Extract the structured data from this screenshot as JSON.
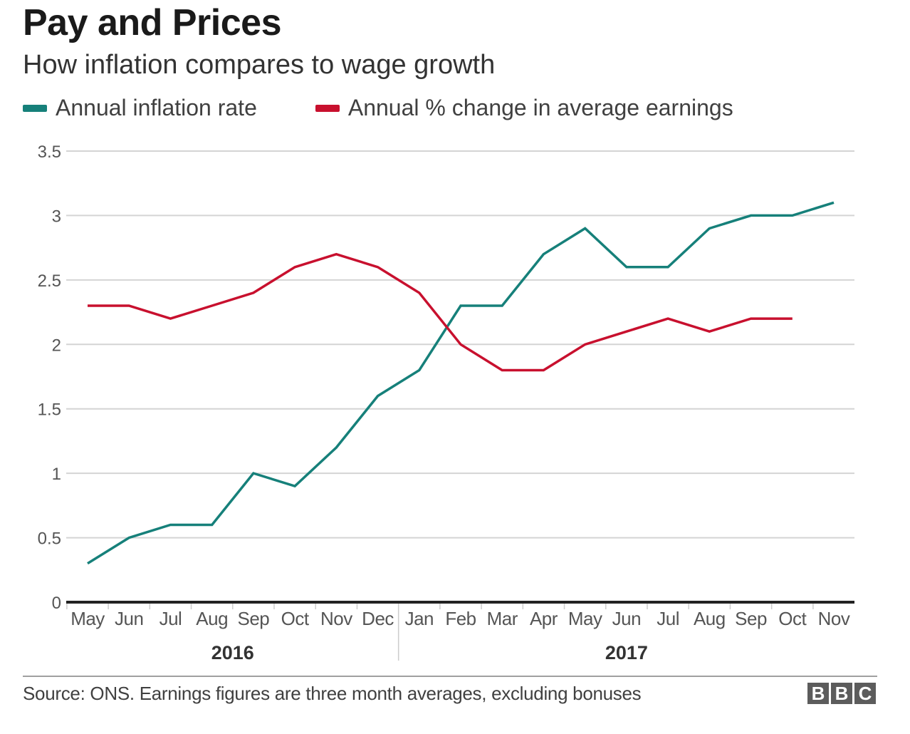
{
  "header": {
    "title": "Pay and Prices",
    "subtitle": "How inflation compares to wage growth"
  },
  "legend": [
    {
      "label": "Annual inflation rate",
      "color": "#16807a"
    },
    {
      "label": "Annual % change in average earnings",
      "color": "#c8102e"
    }
  ],
  "footer": {
    "source": "Source: ONS. Earnings figures are three month averages, excluding bonuses",
    "logo_letters": [
      "B",
      "B",
      "C"
    ]
  },
  "chart_data": {
    "type": "line",
    "title": "Pay and Prices",
    "subtitle": "How inflation compares to wage growth",
    "xlabel": "",
    "ylabel": "",
    "ylim": [
      0,
      3.5
    ],
    "yticks": [
      0,
      0.5,
      1,
      1.5,
      2,
      2.5,
      3,
      3.5
    ],
    "ytick_labels": [
      "0",
      "0.5",
      "1",
      "1.5",
      "2",
      "2.5",
      "3",
      "3.5"
    ],
    "grid": true,
    "legend_position": "top-left",
    "categories": [
      "May",
      "Jun",
      "Jul",
      "Aug",
      "Sep",
      "Oct",
      "Nov",
      "Dec",
      "Jan",
      "Feb",
      "Mar",
      "Apr",
      "May",
      "Jun",
      "Jul",
      "Aug",
      "Sep",
      "Oct",
      "Nov"
    ],
    "year_groups": [
      {
        "label": "2016",
        "start": 0,
        "end": 7
      },
      {
        "label": "2017",
        "start": 8,
        "end": 18
      }
    ],
    "series": [
      {
        "name": "Annual inflation rate",
        "color": "#16807a",
        "values": [
          0.3,
          0.5,
          0.6,
          0.6,
          1.0,
          0.9,
          1.2,
          1.6,
          1.8,
          2.3,
          2.3,
          2.7,
          2.9,
          2.6,
          2.6,
          2.9,
          3.0,
          3.0,
          3.1
        ]
      },
      {
        "name": "Annual % change in average earnings",
        "color": "#c8102e",
        "values": [
          2.3,
          2.3,
          2.2,
          2.3,
          2.4,
          2.6,
          2.7,
          2.6,
          2.4,
          2.0,
          1.8,
          1.8,
          2.0,
          2.1,
          2.2,
          2.1,
          2.2,
          2.2,
          null
        ]
      }
    ]
  }
}
